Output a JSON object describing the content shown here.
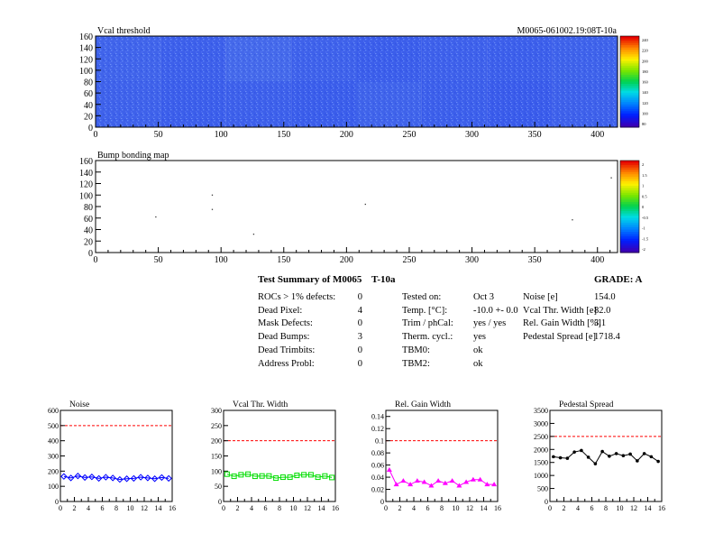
{
  "colors": {
    "red_dashed": "#ff0000",
    "frame": "#000000",
    "noise": "#0000ff",
    "vcal": "#00dd00",
    "gain": "#ff00ff",
    "pedestal": "#000000"
  },
  "chart_data": [
    {
      "type": "heatmap",
      "title": "Vcal threshold",
      "annotation": "M0065-061002.19:08T-10a",
      "xlim": [
        0,
        416
      ],
      "ylim": [
        0,
        160
      ],
      "x_ticks": [
        "0",
        "50",
        "100",
        "150",
        "200",
        "250",
        "300",
        "350",
        "400"
      ],
      "y_ticks": [
        "0",
        "20",
        "40",
        "60",
        "80",
        "100",
        "120",
        "140",
        "160"
      ],
      "palette_labels": [
        "240",
        "220",
        "200",
        "180",
        "160",
        "140",
        "120",
        "100",
        "80"
      ],
      "roc_grid": {
        "cols": 8,
        "rows": 2,
        "roc_width": 52,
        "roc_height": 80
      },
      "roc_shade": [
        [
          0.55,
          0.62,
          0.58,
          0.64,
          0.52,
          0.6,
          0.66,
          0.57
        ],
        [
          0.5,
          0.58,
          0.4,
          0.55,
          0.62,
          0.56,
          0.6,
          0.54
        ]
      ]
    },
    {
      "type": "scatter",
      "title": "Bump bonding map",
      "xlim": [
        0,
        416
      ],
      "ylim": [
        0,
        160
      ],
      "x_ticks": [
        "0",
        "50",
        "100",
        "150",
        "200",
        "250",
        "300",
        "350",
        "400"
      ],
      "y_ticks": [
        "0",
        "20",
        "40",
        "60",
        "80",
        "100",
        "120",
        "140",
        "160"
      ],
      "palette_labels": [
        "2",
        "1.5",
        "1",
        "0.5",
        "0",
        "-0.5",
        "-1",
        "-1.5",
        "-2"
      ],
      "points": [
        [
          48,
          62
        ],
        [
          93,
          100
        ],
        [
          93,
          75
        ],
        [
          126,
          32
        ],
        [
          215,
          84
        ],
        [
          380,
          57
        ],
        [
          411,
          130
        ]
      ]
    },
    {
      "type": "line",
      "title": "Noise",
      "x": [
        0,
        1,
        2,
        3,
        4,
        5,
        6,
        7,
        8,
        9,
        10,
        11,
        12,
        13,
        14,
        15
      ],
      "values": [
        165,
        155,
        168,
        158,
        162,
        152,
        160,
        155,
        145,
        150,
        152,
        160,
        155,
        150,
        158,
        152
      ],
      "xlim": [
        0,
        16
      ],
      "ylim": [
        0,
        600
      ],
      "reference_line": 500,
      "x_ticks": [
        "0",
        "2",
        "4",
        "6",
        "8",
        "10",
        "12",
        "14",
        "16"
      ],
      "y_ticks": [
        "0",
        "100",
        "200",
        "300",
        "400",
        "500",
        "600"
      ],
      "y_tick_values": [
        0,
        100,
        200,
        300,
        400,
        500,
        600
      ],
      "marker": "diamond"
    },
    {
      "type": "line",
      "title": "Vcal Thr. Width",
      "x": [
        0,
        1,
        2,
        3,
        4,
        5,
        6,
        7,
        8,
        9,
        10,
        11,
        12,
        13,
        14,
        15
      ],
      "values": [
        90,
        83,
        88,
        90,
        83,
        84,
        84,
        77,
        80,
        80,
        86,
        88,
        88,
        80,
        84,
        79
      ],
      "xlim": [
        0,
        16
      ],
      "ylim": [
        0,
        300
      ],
      "reference_line": 200,
      "x_ticks": [
        "0",
        "2",
        "4",
        "6",
        "8",
        "10",
        "12",
        "14",
        "16"
      ],
      "y_ticks": [
        "0",
        "50",
        "100",
        "150",
        "200",
        "250",
        "300"
      ],
      "y_tick_values": [
        0,
        50,
        100,
        150,
        200,
        250,
        300
      ],
      "marker": "square"
    },
    {
      "type": "line",
      "title": "Rel. Gain Width",
      "x": [
        0,
        1,
        2,
        3,
        4,
        5,
        6,
        7,
        8,
        9,
        10,
        11,
        12,
        13,
        14,
        15
      ],
      "values": [
        0.052,
        0.028,
        0.034,
        0.028,
        0.034,
        0.032,
        0.026,
        0.034,
        0.03,
        0.034,
        0.026,
        0.032,
        0.036,
        0.036,
        0.028,
        0.028
      ],
      "xlim": [
        0,
        16
      ],
      "ylim": [
        0,
        0.15
      ],
      "reference_line": 0.1,
      "x_ticks": [
        "0",
        "2",
        "4",
        "6",
        "8",
        "10",
        "12",
        "14",
        "16"
      ],
      "y_ticks": [
        "0",
        "0.02",
        "0.04",
        "0.06",
        "0.08",
        "0.1",
        "0.12",
        "0.14"
      ],
      "y_tick_values": [
        0,
        0.02,
        0.04,
        0.06,
        0.08,
        0.1,
        0.12,
        0.14
      ],
      "marker": "triangle"
    },
    {
      "type": "line",
      "title": "Pedestal Spread",
      "x": [
        0,
        1,
        2,
        3,
        4,
        5,
        6,
        7,
        8,
        9,
        10,
        11,
        12,
        13,
        14,
        15
      ],
      "values": [
        1720,
        1680,
        1660,
        1900,
        1960,
        1700,
        1450,
        1920,
        1740,
        1840,
        1760,
        1820,
        1560,
        1840,
        1720,
        1540
      ],
      "xlim": [
        0,
        16
      ],
      "ylim": [
        0,
        3500
      ],
      "reference_line": 2500,
      "x_ticks": [
        "0",
        "2",
        "4",
        "6",
        "8",
        "10",
        "12",
        "14",
        "16"
      ],
      "y_ticks": [
        "0",
        "500",
        "1000",
        "1500",
        "2000",
        "2500",
        "3000",
        "3500"
      ],
      "y_tick_values": [
        0,
        500,
        1000,
        1500,
        2000,
        2500,
        3000,
        3500
      ],
      "marker": "circle"
    }
  ],
  "summary": {
    "title": "Test Summary of M0065",
    "module_suffix": "T-10a",
    "grade": "GRADE:  A",
    "col1": [
      {
        "label": "ROCs > 1% defects:",
        "value": "0"
      },
      {
        "label": "Dead Pixel:",
        "value": "4"
      },
      {
        "label": "Mask Defects:",
        "value": "0"
      },
      {
        "label": "Dead Bumps:",
        "value": "3"
      },
      {
        "label": "Dead Trimbits:",
        "value": "0"
      },
      {
        "label": "Address Probl:",
        "value": "0"
      }
    ],
    "col2": [
      {
        "label": "Tested on:",
        "value": "Oct 3"
      },
      {
        "label": "Temp. [°C]:",
        "value": "-10.0 +- 0.0"
      },
      {
        "label": "Trim / phCal:",
        "value": "yes / yes"
      },
      {
        "label": "Therm. cycl.:",
        "value": "yes"
      },
      {
        "label": "TBM0:",
        "value": "ok"
      },
      {
        "label": "TBM2:",
        "value": "ok"
      }
    ],
    "col3": [
      {
        "label": "Noise [e]",
        "value": "154.0"
      },
      {
        "label": "Vcal Thr. Width [e]",
        "value": "82.0"
      },
      {
        "label": "Rel. Gain Width [%]",
        "value": "3.1"
      },
      {
        "label": "Pedestal Spread [e]",
        "value": "1718.4"
      }
    ]
  }
}
